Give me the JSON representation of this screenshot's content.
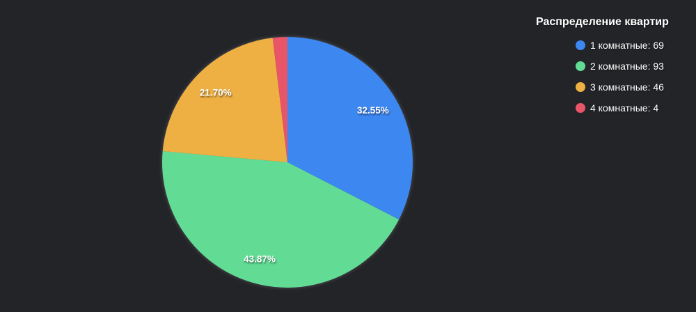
{
  "chart_data": {
    "type": "pie",
    "title": "Распределение квартир",
    "categories": [
      "1 комнатные",
      "2 комнатные",
      "3 комнатные",
      "4 комнатные"
    ],
    "values": [
      69,
      93,
      46,
      4
    ],
    "percent_labels": [
      "32.55%",
      "43.87%",
      "21.70%",
      ""
    ],
    "colors": [
      "#3d87f1",
      "#62dc95",
      "#efb043",
      "#e85568"
    ],
    "legend_entries": [
      "1 комнатные: 69",
      "2 комнатные: 93",
      "3 комнатные: 46",
      "4 комнатные: 4"
    ],
    "legend_position": "right",
    "background_color": "#232428",
    "text_color": "#ffffff",
    "start_angle": "top",
    "direction": "clockwise",
    "label_radius_fraction": 0.8
  }
}
